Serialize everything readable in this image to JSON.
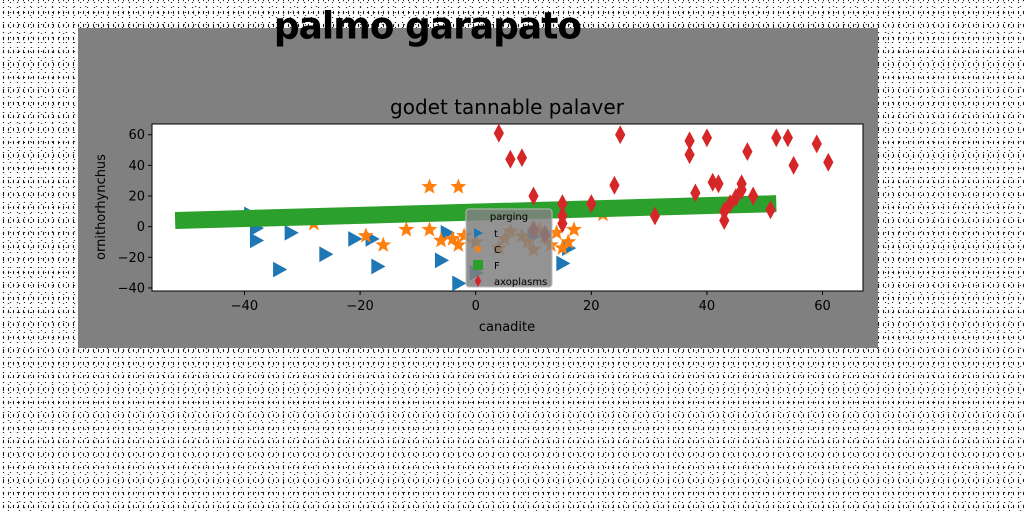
{
  "figure": {
    "suptitle": "palmo garapato"
  },
  "chart_data": {
    "type": "scatter",
    "title": "godet tannable palaver",
    "xlabel": "canadite",
    "ylabel": "ornithorhynchus",
    "xlim": [
      -56,
      67
    ],
    "ylim": [
      -42,
      67
    ],
    "xticks": [
      -40,
      -20,
      0,
      20,
      40,
      60
    ],
    "yticks": [
      -40,
      -20,
      0,
      20,
      40,
      60
    ],
    "grid": false,
    "legend": {
      "title": "parging",
      "placement": "center"
    },
    "series": [
      {
        "name": "t",
        "marker": "triangle-right",
        "color": "#1f77b4",
        "points": [
          [
            -39,
            8
          ],
          [
            -38,
            -1
          ],
          [
            -38,
            -9
          ],
          [
            -34,
            -28
          ],
          [
            -32,
            -4
          ],
          [
            -26,
            -18
          ],
          [
            -21,
            -8
          ],
          [
            -18,
            -8
          ],
          [
            -17,
            -26
          ],
          [
            -6,
            -22
          ],
          [
            -5,
            -4
          ],
          [
            -3,
            -37
          ],
          [
            15,
            -24
          ],
          [
            16,
            -14
          ],
          [
            0,
            -30
          ],
          [
            10,
            -6
          ]
        ]
      },
      {
        "name": "C",
        "marker": "star",
        "color": "#ff7f0e",
        "points": [
          [
            -8,
            26
          ],
          [
            -3,
            26
          ],
          [
            -19,
            -6
          ],
          [
            -16,
            -12
          ],
          [
            -12,
            -2
          ],
          [
            -8,
            -2
          ],
          [
            -6,
            -9
          ],
          [
            -4,
            -8
          ],
          [
            -3,
            -12
          ],
          [
            -2,
            -6
          ],
          [
            0,
            -10
          ],
          [
            4,
            -14
          ],
          [
            5,
            -8
          ],
          [
            6,
            -3
          ],
          [
            8,
            -6
          ],
          [
            9,
            -10
          ],
          [
            10,
            -15
          ],
          [
            11,
            -2
          ],
          [
            12,
            -7
          ],
          [
            13,
            -12
          ],
          [
            14,
            -4
          ],
          [
            15,
            -14
          ],
          [
            16,
            -10
          ],
          [
            17,
            -2
          ],
          [
            22,
            8
          ],
          [
            -30,
            5
          ],
          [
            -28,
            2
          ]
        ]
      },
      {
        "name": "F",
        "marker": "line",
        "color": "#2ca02c",
        "line": {
          "x": [
            -52,
            52
          ],
          "y": [
            4,
            15
          ]
        }
      },
      {
        "name": "axoplasms",
        "marker": "diamond",
        "color": "#d62728",
        "points": [
          [
            4,
            61
          ],
          [
            6,
            44
          ],
          [
            8,
            45
          ],
          [
            10,
            20
          ],
          [
            15,
            15
          ],
          [
            15,
            7
          ],
          [
            15,
            2
          ],
          [
            20,
            15
          ],
          [
            24,
            27
          ],
          [
            25,
            60
          ],
          [
            31,
            7
          ],
          [
            37,
            56
          ],
          [
            37,
            47
          ],
          [
            38,
            22
          ],
          [
            40,
            58
          ],
          [
            41,
            29
          ],
          [
            42,
            28
          ],
          [
            43,
            4
          ],
          [
            43,
            10
          ],
          [
            44,
            15
          ],
          [
            45,
            19
          ],
          [
            46,
            28
          ],
          [
            46,
            24
          ],
          [
            47,
            49
          ],
          [
            48,
            20
          ],
          [
            51,
            11
          ],
          [
            52,
            58
          ],
          [
            54,
            58
          ],
          [
            55,
            40
          ],
          [
            59,
            54
          ],
          [
            61,
            42
          ],
          [
            10,
            -2
          ],
          [
            12,
            -5
          ]
        ]
      }
    ]
  }
}
